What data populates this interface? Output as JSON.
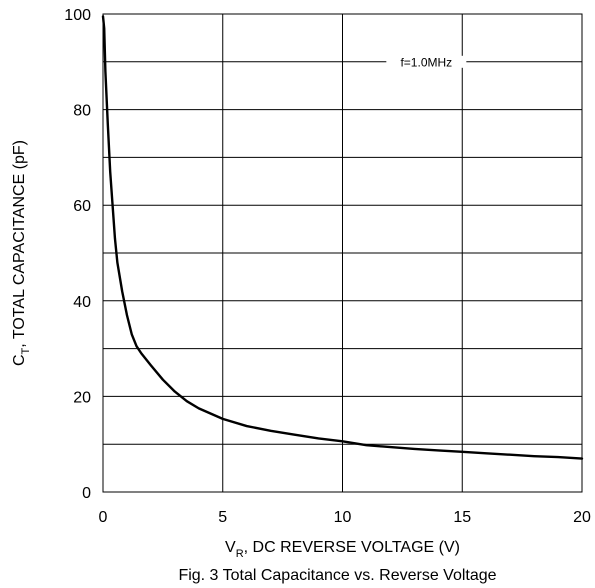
{
  "chart_data": {
    "type": "line",
    "title": "",
    "caption": "Fig. 3  Total Capacitance vs. Reverse Voltage",
    "xlabel": {
      "main": "V",
      "sub": "R",
      "rest": ", DC REVERSE VOLTAGE (V)"
    },
    "ylabel": {
      "main": "C",
      "sub": "T",
      "rest": ", TOTAL CAPACITANCE (pF)"
    },
    "xlim": [
      0,
      20
    ],
    "ylim": [
      0,
      100
    ],
    "x_ticks": [
      0,
      5,
      10,
      15,
      20
    ],
    "y_ticks": [
      0,
      20,
      40,
      60,
      80,
      100
    ],
    "x_grid": [
      5,
      10,
      15,
      20
    ],
    "y_grid": [
      10,
      20,
      30,
      40,
      50,
      60,
      70,
      80,
      90,
      100
    ],
    "grid": true,
    "annotation": {
      "text": "f=1.0MHz",
      "x": 13.5,
      "y": 90
    },
    "series": [
      {
        "color": "#000000",
        "x": [
          0,
          0.05,
          0.1,
          0.2,
          0.3,
          0.4,
          0.5,
          0.6,
          0.8,
          1.0,
          1.2,
          1.4,
          1.6,
          2.0,
          2.5,
          3.0,
          3.5,
          4.0,
          5.0,
          6.0,
          7.0,
          8.0,
          9.0,
          10.0,
          11.0,
          12.0,
          13.0,
          14.0,
          15.0,
          16.0,
          17.0,
          18.0,
          19.0,
          20.0
        ],
        "y": [
          99.5,
          97,
          88,
          77,
          67,
          60,
          53,
          48,
          42,
          37,
          33,
          30.5,
          29,
          26.5,
          23.5,
          21,
          19,
          17.5,
          15.3,
          13.8,
          12.8,
          12,
          11.2,
          10.6,
          9.8,
          9.4,
          9.0,
          8.7,
          8.4,
          8.1,
          7.8,
          7.5,
          7.3,
          7.0
        ]
      }
    ]
  }
}
